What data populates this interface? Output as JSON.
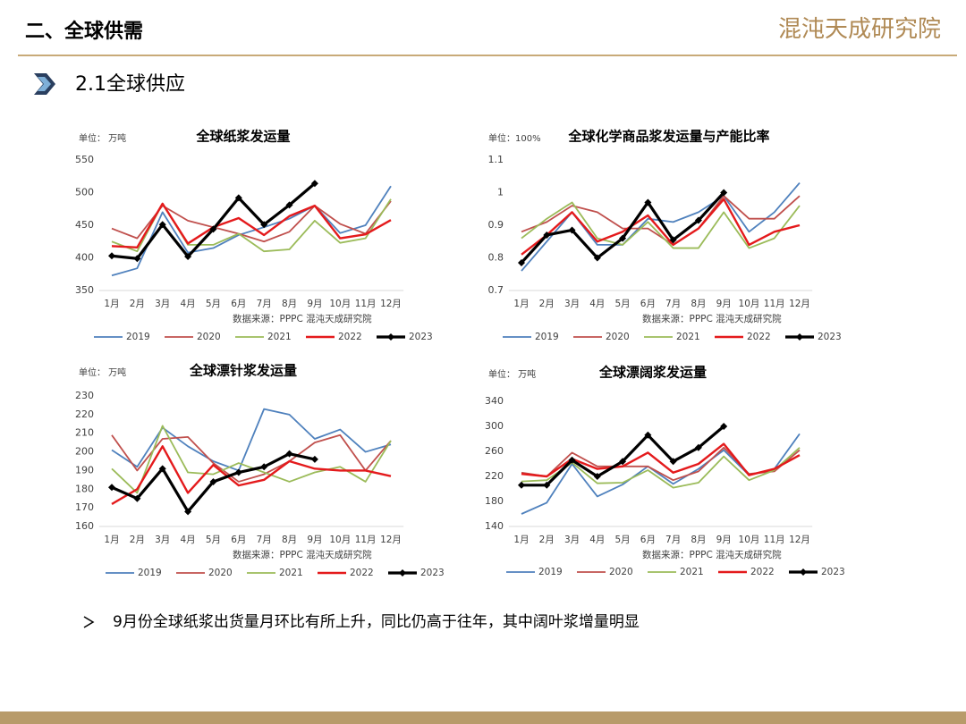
{
  "header": {
    "section": "二、全球供需",
    "logo": "混沌天成研究院",
    "subsection": "2.1全球供应",
    "bullet": "9月份全球纸浆出货量月环比有所上升，同比仍高于往年，其中阔叶浆增量明显"
  },
  "chart_data": [
    {
      "type": "line",
      "title": "全球纸浆发运量",
      "unit": "单位：  万吨",
      "source": "数据来源：PPPC 混沌天成研究院",
      "categories": [
        "1月",
        "2月",
        "3月",
        "4月",
        "5月",
        "6月",
        "7月",
        "8月",
        "9月",
        "10月",
        "11月",
        "12月"
      ],
      "ylim": [
        350,
        550
      ],
      "yticks": [
        350,
        400,
        450,
        500,
        550
      ],
      "grid": false,
      "series": [
        {
          "name": "2019",
          "color": "#4f81bd",
          "values": [
            373,
            384,
            470,
            408,
            415,
            435,
            447,
            460,
            480,
            438,
            450,
            510
          ]
        },
        {
          "name": "2020",
          "color": "#c0504d",
          "values": [
            445,
            430,
            480,
            457,
            447,
            437,
            425,
            440,
            480,
            452,
            437,
            487
          ]
        },
        {
          "name": "2021",
          "color": "#9bbb59",
          "values": [
            425,
            410,
            483,
            420,
            420,
            437,
            410,
            413,
            457,
            423,
            430,
            490
          ]
        },
        {
          "name": "2022",
          "color": "#e41a1c",
          "values": [
            418,
            416,
            483,
            422,
            447,
            461,
            435,
            464,
            480,
            430,
            436,
            458
          ]
        },
        {
          "name": "2023",
          "color": "#000000",
          "values": [
            403,
            399,
            451,
            402,
            444,
            492,
            451,
            481,
            514,
            null,
            null,
            null
          ]
        }
      ]
    },
    {
      "type": "line",
      "title": "全球化学商品浆发运量与产能比率",
      "unit": "单位：100%",
      "source": "数据来源：PPPC 混沌天成研究院",
      "categories": [
        "1月",
        "2月",
        "3月",
        "4月",
        "5月",
        "6月",
        "7月",
        "8月",
        "9月",
        "10月",
        "11月",
        "12月"
      ],
      "ylim": [
        0.7,
        1.1
      ],
      "yticks": [
        0.7,
        0.8,
        0.9,
        1,
        1.1
      ],
      "grid": false,
      "series": [
        {
          "name": "2019",
          "color": "#4f81bd",
          "values": [
            0.76,
            0.85,
            0.94,
            0.84,
            0.84,
            0.92,
            0.91,
            0.94,
            0.99,
            0.88,
            0.94,
            1.03
          ]
        },
        {
          "name": "2020",
          "color": "#c0504d",
          "values": [
            0.88,
            0.91,
            0.96,
            0.94,
            0.89,
            0.89,
            0.84,
            0.89,
            0.99,
            0.92,
            0.92,
            0.99
          ]
        },
        {
          "name": "2021",
          "color": "#9bbb59",
          "values": [
            0.86,
            0.92,
            0.97,
            0.86,
            0.84,
            0.91,
            0.83,
            0.83,
            0.94,
            0.83,
            0.86,
            0.96
          ]
        },
        {
          "name": "2022",
          "color": "#e41a1c",
          "values": [
            0.81,
            0.87,
            0.94,
            0.85,
            0.88,
            0.93,
            0.84,
            0.89,
            0.98,
            0.84,
            0.88,
            0.9
          ]
        },
        {
          "name": "2023",
          "color": "#000000",
          "values": [
            0.785,
            0.87,
            0.885,
            0.8,
            0.86,
            0.97,
            0.855,
            0.915,
            1.0,
            null,
            null,
            null
          ]
        }
      ]
    },
    {
      "type": "line",
      "title": "全球漂针浆发运量",
      "unit": "单位：  万吨",
      "source": "数据来源：PPPC 混沌天成研究院",
      "categories": [
        "1月",
        "2月",
        "3月",
        "4月",
        "5月",
        "6月",
        "7月",
        "8月",
        "9月",
        "10月",
        "11月",
        "12月"
      ],
      "ylim": [
        160,
        230
      ],
      "yticks": [
        160,
        170,
        180,
        190,
        200,
        210,
        220,
        230
      ],
      "grid": false,
      "series": [
        {
          "name": "2019",
          "color": "#4f81bd",
          "values": [
            201,
            192,
            213,
            203,
            195,
            190,
            223,
            220,
            207,
            212,
            200,
            204
          ]
        },
        {
          "name": "2020",
          "color": "#c0504d",
          "values": [
            209,
            190,
            207,
            208,
            194,
            184,
            188,
            195,
            205,
            209,
            190,
            206
          ]
        },
        {
          "name": "2021",
          "color": "#9bbb59",
          "values": [
            191,
            178,
            214,
            189,
            188,
            194,
            189,
            184,
            189,
            192,
            184,
            206
          ]
        },
        {
          "name": "2022",
          "color": "#e41a1c",
          "values": [
            172,
            180,
            203,
            178,
            193,
            182,
            185,
            195,
            191,
            190,
            190,
            187
          ]
        },
        {
          "name": "2023",
          "color": "#000000",
          "values": [
            181,
            175,
            191,
            168,
            184,
            189,
            192,
            199,
            196,
            null,
            null,
            null
          ]
        }
      ]
    },
    {
      "type": "line",
      "title": "全球漂阔浆发运量",
      "unit": "单位：  万吨",
      "source": "数据来源：PPPC 混沌天成研究院",
      "categories": [
        "1月",
        "2月",
        "3月",
        "4月",
        "5月",
        "6月",
        "7月",
        "8月",
        "9月",
        "10月",
        "11月",
        "12月"
      ],
      "ylim": [
        140,
        340
      ],
      "yticks": [
        140,
        180,
        220,
        260,
        300,
        340
      ],
      "grid": false,
      "series": [
        {
          "name": "2019",
          "color": "#4f81bd",
          "values": [
            160,
            178,
            240,
            188,
            207,
            236,
            208,
            232,
            262,
            222,
            232,
            288
          ]
        },
        {
          "name": "2020",
          "color": "#c0504d",
          "values": [
            226,
            220,
            258,
            236,
            236,
            236,
            214,
            228,
            266,
            224,
            228,
            262
          ]
        },
        {
          "name": "2021",
          "color": "#9bbb59",
          "values": [
            212,
            214,
            242,
            209,
            210,
            230,
            202,
            210,
            252,
            214,
            230,
            266
          ]
        },
        {
          "name": "2022",
          "color": "#e41a1c",
          "values": [
            224,
            220,
            248,
            232,
            236,
            258,
            226,
            240,
            272,
            222,
            232,
            254
          ]
        },
        {
          "name": "2023",
          "color": "#000000",
          "values": [
            206,
            206,
            246,
            220,
            244,
            286,
            244,
            266,
            300,
            null,
            null,
            null
          ]
        }
      ]
    }
  ]
}
